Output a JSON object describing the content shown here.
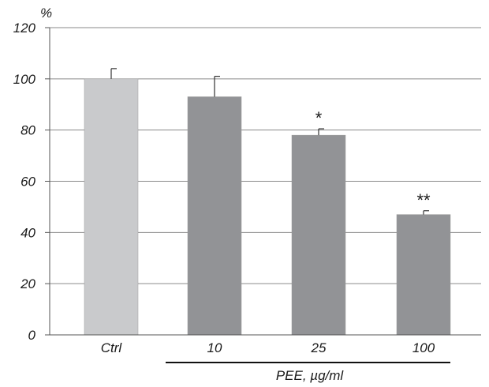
{
  "chart_data": {
    "type": "bar",
    "title": "",
    "ylabel": "%",
    "xlabel": "PEE, µg/ml",
    "categories": [
      "Ctrl",
      "10",
      "25",
      "100"
    ],
    "values": [
      100,
      93,
      78,
      47
    ],
    "errors": [
      4,
      8,
      2.5,
      1.5
    ],
    "significance": [
      "",
      "",
      "*",
      "**"
    ],
    "bar_colors": [
      "#c9cacc",
      "#929396",
      "#929396",
      "#929396"
    ],
    "ylim": [
      0,
      120
    ],
    "yticks": [
      0,
      20,
      40,
      60,
      80,
      100,
      120
    ],
    "grid": true,
    "group_bracket": {
      "label": "PEE, µg/ml",
      "from_category": 1,
      "to_category": 3
    }
  }
}
